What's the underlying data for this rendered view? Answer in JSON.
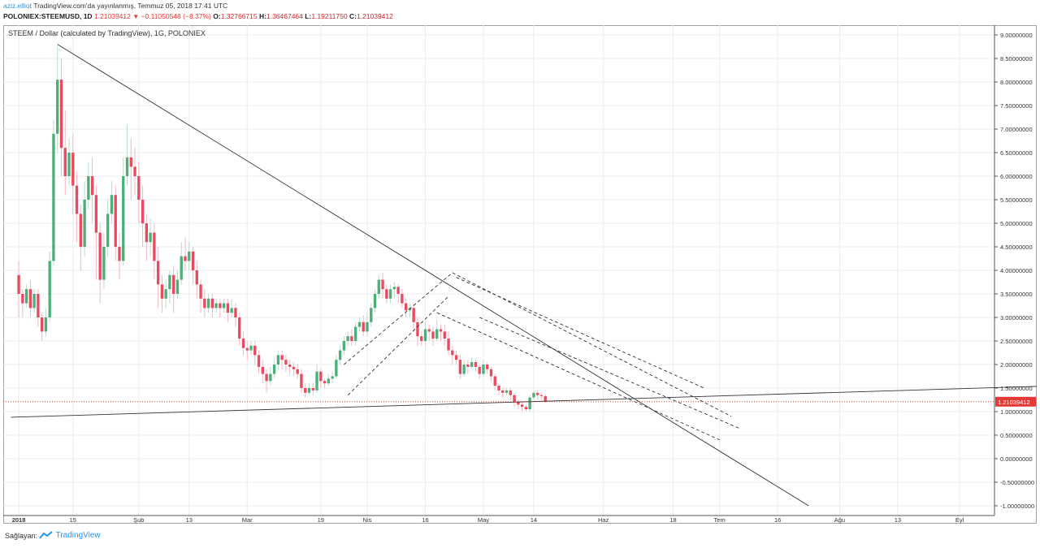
{
  "header": {
    "author": "aziz.elliot",
    "published": "TradingView.com'da yayınlanmış, Temmuz 05, 2018 17:41 UTC",
    "symbol": "POLONIEX:STEEMUSD, 1D",
    "last": "1.21039412",
    "change": "−0.11050548 (−8.37%)",
    "o_label": "O:",
    "o": "1.32766715",
    "h_label": "H:",
    "h": "1.36467464",
    "l_label": "L:",
    "l": "1.19211750",
    "c_label": "C:",
    "c": "1.21039412"
  },
  "footer": {
    "source_label": "Sağlayan:",
    "brand": "TradingView"
  },
  "colors": {
    "up": "#4caf7a",
    "down": "#e84a5f",
    "grid": "#e8eef3",
    "trendline": "#555555",
    "price_line": "#e53935"
  },
  "chart_data": {
    "type": "candlestick",
    "title": "STEEM / Dollar (calculated by TradingView), 1G, POLONIEX",
    "last_price_label": "1.21039412",
    "y_range": [
      -1.0,
      9.0
    ],
    "y_ticks": [
      "9.00000000",
      "8.50000000",
      "8.00000000",
      "7.50000000",
      "7.00000000",
      "6.50000000",
      "6.00000000",
      "5.50000000",
      "5.00000000",
      "4.50000000",
      "4.00000000",
      "3.50000000",
      "3.00000000",
      "2.50000000",
      "2.00000000",
      "1.50000000",
      "1.00000000",
      "0.50000000",
      "0.00000000",
      "-0.50000000",
      "-1.00000000"
    ],
    "y_tick_values": [
      9.0,
      8.5,
      8.0,
      7.5,
      7.0,
      6.5,
      6.0,
      5.5,
      5.0,
      4.5,
      4.0,
      3.5,
      3.0,
      2.5,
      2.0,
      1.5,
      1.0,
      0.5,
      0.0,
      -0.5,
      -1.0
    ],
    "x_ticks": [
      "2018",
      "15",
      "Şub",
      "13",
      "Mar",
      "19",
      "Nis",
      "16",
      "May",
      "14",
      "Haz",
      "18",
      "Tem",
      "16",
      "Ağu",
      "13",
      "Eyl"
    ],
    "x_tick_days": [
      0,
      14,
      31,
      44,
      59,
      78,
      90,
      105,
      120,
      133,
      151,
      169,
      181,
      196,
      212,
      227,
      243
    ],
    "candles_start": "2017-12-26",
    "candles": [
      [
        3.9,
        3.5,
        3.0,
        4.2
      ],
      [
        3.5,
        3.3,
        3.0,
        3.6
      ],
      [
        3.3,
        3.6,
        3.2,
        3.7
      ],
      [
        3.6,
        3.2,
        3.0,
        3.8
      ],
      [
        3.2,
        3.5,
        3.1,
        3.6
      ],
      [
        3.5,
        3.0,
        2.8,
        3.6
      ],
      [
        3.0,
        2.7,
        2.5,
        3.1
      ],
      [
        2.7,
        3.0,
        2.6,
        3.2
      ],
      [
        3.0,
        4.2,
        2.9,
        4.4
      ],
      [
        4.2,
        6.9,
        4.1,
        7.2
      ],
      [
        6.9,
        8.05,
        6.5,
        8.75
      ],
      [
        8.05,
        6.6,
        6.0,
        8.5
      ],
      [
        6.6,
        6.0,
        5.6,
        7.4
      ],
      [
        6.0,
        6.5,
        5.8,
        6.8
      ],
      [
        6.5,
        5.8,
        5.2,
        6.9
      ],
      [
        5.8,
        5.2,
        4.6,
        6.1
      ],
      [
        5.2,
        4.5,
        4.0,
        5.4
      ],
      [
        4.5,
        5.5,
        4.3,
        5.9
      ],
      [
        5.5,
        6.0,
        5.3,
        6.3
      ],
      [
        6.0,
        5.6,
        5.0,
        6.4
      ],
      [
        5.6,
        4.8,
        3.8,
        5.8
      ],
      [
        4.8,
        3.8,
        3.3,
        5.0
      ],
      [
        3.8,
        4.5,
        3.6,
        4.8
      ],
      [
        4.5,
        5.2,
        4.3,
        5.5
      ],
      [
        5.2,
        5.6,
        5.0,
        5.9
      ],
      [
        5.6,
        4.5,
        4.2,
        5.8
      ],
      [
        4.5,
        4.2,
        3.8,
        4.8
      ],
      [
        4.2,
        6.0,
        4.1,
        6.4
      ],
      [
        6.0,
        6.4,
        5.8,
        7.1
      ],
      [
        6.4,
        6.2,
        5.5,
        6.8
      ],
      [
        6.2,
        6.0,
        5.6,
        6.6
      ],
      [
        6.0,
        5.5,
        5.0,
        6.3
      ],
      [
        5.5,
        5.0,
        4.5,
        5.8
      ],
      [
        5.0,
        4.6,
        4.2,
        5.2
      ],
      [
        4.6,
        4.8,
        4.3,
        5.1
      ],
      [
        4.8,
        4.2,
        3.8,
        5.0
      ],
      [
        4.2,
        3.7,
        3.2,
        4.5
      ],
      [
        3.7,
        3.4,
        3.1,
        3.9
      ],
      [
        3.4,
        3.6,
        3.2,
        3.8
      ],
      [
        3.6,
        3.9,
        3.3,
        4.0
      ],
      [
        3.9,
        3.5,
        3.1,
        4.1
      ],
      [
        3.5,
        3.8,
        3.4,
        4.0
      ],
      [
        3.8,
        4.3,
        3.7,
        4.6
      ],
      [
        4.3,
        4.2,
        4.0,
        4.7
      ],
      [
        4.2,
        4.4,
        4.0,
        4.6
      ],
      [
        4.4,
        4.0,
        3.7,
        4.5
      ],
      [
        4.0,
        3.7,
        3.4,
        4.2
      ],
      [
        3.7,
        3.4,
        3.1,
        3.8
      ],
      [
        3.4,
        3.2,
        3.0,
        3.6
      ],
      [
        3.2,
        3.4,
        3.1,
        3.5
      ],
      [
        3.4,
        3.2,
        3.0,
        3.5
      ],
      [
        3.2,
        3.3,
        3.1,
        3.4
      ],
      [
        3.3,
        3.2,
        3.0,
        3.4
      ],
      [
        3.2,
        3.3,
        3.1,
        3.4
      ],
      [
        3.3,
        3.1,
        2.9,
        3.4
      ],
      [
        3.1,
        3.2,
        3.0,
        3.4
      ],
      [
        3.2,
        3.0,
        2.8,
        3.3
      ],
      [
        3.0,
        2.55,
        2.4,
        3.1
      ],
      [
        2.55,
        2.35,
        2.2,
        2.7
      ],
      [
        2.35,
        2.3,
        2.1,
        2.5
      ],
      [
        2.3,
        2.4,
        2.2,
        2.5
      ],
      [
        2.4,
        2.2,
        2.0,
        2.5
      ],
      [
        2.2,
        1.95,
        1.8,
        2.3
      ],
      [
        1.95,
        1.8,
        1.6,
        2.1
      ],
      [
        1.8,
        1.65,
        1.4,
        1.9
      ],
      [
        1.65,
        1.8,
        1.55,
        1.95
      ],
      [
        1.8,
        2.0,
        1.7,
        2.1
      ],
      [
        2.0,
        2.2,
        1.9,
        2.3
      ],
      [
        2.2,
        2.1,
        1.9,
        2.3
      ],
      [
        2.1,
        2.0,
        1.85,
        2.2
      ],
      [
        2.0,
        1.95,
        1.8,
        2.1
      ],
      [
        1.95,
        1.9,
        1.75,
        2.05
      ],
      [
        1.9,
        1.8,
        1.7,
        2.0
      ],
      [
        1.8,
        1.5,
        1.4,
        1.9
      ],
      [
        1.5,
        1.4,
        1.3,
        1.6
      ],
      [
        1.4,
        1.5,
        1.35,
        1.6
      ],
      [
        1.5,
        1.45,
        1.35,
        1.6
      ],
      [
        1.45,
        1.85,
        1.4,
        2.0
      ],
      [
        1.85,
        1.65,
        1.5,
        1.9
      ],
      [
        1.65,
        1.6,
        1.5,
        1.7
      ],
      [
        1.6,
        1.7,
        1.55,
        1.8
      ],
      [
        1.7,
        1.75,
        1.6,
        1.85
      ],
      [
        1.75,
        2.1,
        1.7,
        2.2
      ],
      [
        2.1,
        2.3,
        2.0,
        2.4
      ],
      [
        2.3,
        2.5,
        2.2,
        2.6
      ],
      [
        2.5,
        2.6,
        2.4,
        2.7
      ],
      [
        2.6,
        2.5,
        2.4,
        2.75
      ],
      [
        2.5,
        2.8,
        2.4,
        2.9
      ],
      [
        2.8,
        2.9,
        2.7,
        3.0
      ],
      [
        2.9,
        2.7,
        2.6,
        3.05
      ],
      [
        2.7,
        2.9,
        2.6,
        3.1
      ],
      [
        2.9,
        3.2,
        2.8,
        3.3
      ],
      [
        3.2,
        3.5,
        3.1,
        3.6
      ],
      [
        3.5,
        3.8,
        3.4,
        3.9
      ],
      [
        3.8,
        3.6,
        3.4,
        3.95
      ],
      [
        3.6,
        3.4,
        3.3,
        3.7
      ],
      [
        3.4,
        3.6,
        3.3,
        3.7
      ],
      [
        3.6,
        3.65,
        3.4,
        3.75
      ],
      [
        3.65,
        3.5,
        3.3,
        3.7
      ],
      [
        3.5,
        3.3,
        3.2,
        3.6
      ],
      [
        3.3,
        3.15,
        3.0,
        3.4
      ],
      [
        3.15,
        3.2,
        3.0,
        3.3
      ],
      [
        3.2,
        2.9,
        2.7,
        3.3
      ],
      [
        2.9,
        2.6,
        2.4,
        3.0
      ],
      [
        2.6,
        2.5,
        2.4,
        2.7
      ],
      [
        2.5,
        2.75,
        2.4,
        2.9
      ],
      [
        2.75,
        2.7,
        2.5,
        2.85
      ],
      [
        2.7,
        2.55,
        2.4,
        2.8
      ],
      [
        2.55,
        2.75,
        2.5,
        2.95
      ],
      [
        2.75,
        2.7,
        2.5,
        2.85
      ],
      [
        2.7,
        2.55,
        2.4,
        2.85
      ],
      [
        2.55,
        2.3,
        2.2,
        2.7
      ],
      [
        2.3,
        2.2,
        2.0,
        2.4
      ],
      [
        2.2,
        2.1,
        2.0,
        2.3
      ],
      [
        2.1,
        1.8,
        1.7,
        2.2
      ],
      [
        1.8,
        2.0,
        1.75,
        2.1
      ],
      [
        2.0,
        1.95,
        1.8,
        2.1
      ],
      [
        1.95,
        2.05,
        1.9,
        2.15
      ],
      [
        2.05,
        1.95,
        1.85,
        2.1
      ],
      [
        1.95,
        1.8,
        1.7,
        2.0
      ],
      [
        1.8,
        2.0,
        1.75,
        2.1
      ],
      [
        2.0,
        1.9,
        1.8,
        2.05
      ],
      [
        1.9,
        1.75,
        1.65,
        1.95
      ],
      [
        1.75,
        1.55,
        1.45,
        1.8
      ],
      [
        1.55,
        1.45,
        1.35,
        1.6
      ],
      [
        1.45,
        1.4,
        1.3,
        1.5
      ],
      [
        1.4,
        1.45,
        1.35,
        1.5
      ],
      [
        1.45,
        1.35,
        1.25,
        1.5
      ],
      [
        1.35,
        1.2,
        1.1,
        1.4
      ],
      [
        1.2,
        1.15,
        1.05,
        1.25
      ],
      [
        1.15,
        1.1,
        1.0,
        1.2
      ],
      [
        1.1,
        1.05,
        1.0,
        1.15
      ],
      [
        1.05,
        1.3,
        1.0,
        1.35
      ],
      [
        1.3,
        1.4,
        1.25,
        1.45
      ],
      [
        1.4,
        1.35,
        1.25,
        1.45
      ],
      [
        1.35,
        1.33,
        1.25,
        1.4
      ],
      [
        1.33,
        1.21,
        1.19,
        1.36
      ]
    ],
    "trendlines": [
      {
        "name": "main-downtrend",
        "from": [
          10,
          8.8
        ],
        "to": [
          204,
          -1.0
        ],
        "style": "solid"
      },
      {
        "name": "horizontal-support",
        "from": [
          -2,
          0.88
        ],
        "to": [
          281,
          1.58
        ],
        "style": "solid"
      },
      {
        "name": "channel-up-top",
        "from": [
          84,
          2.0
        ],
        "to": [
          112,
          3.95
        ],
        "style": "dashed"
      },
      {
        "name": "channel-up-bottom",
        "from": [
          85,
          1.35
        ],
        "to": [
          111,
          3.45
        ],
        "style": "dashed"
      },
      {
        "name": "channel-down-top",
        "from": [
          112,
          3.95
        ],
        "to": [
          184,
          0.9
        ],
        "style": "dashed"
      },
      {
        "name": "channel-down-mid",
        "from": [
          119,
          3.0
        ],
        "to": [
          186,
          0.65
        ],
        "style": "dashed"
      },
      {
        "name": "channel-down-bottom",
        "from": [
          108,
          3.1
        ],
        "to": [
          181,
          0.4
        ],
        "style": "dashed"
      },
      {
        "name": "inner-channel",
        "from": [
          113,
          3.85
        ],
        "to": [
          177,
          1.5
        ],
        "style": "dashed"
      }
    ]
  }
}
